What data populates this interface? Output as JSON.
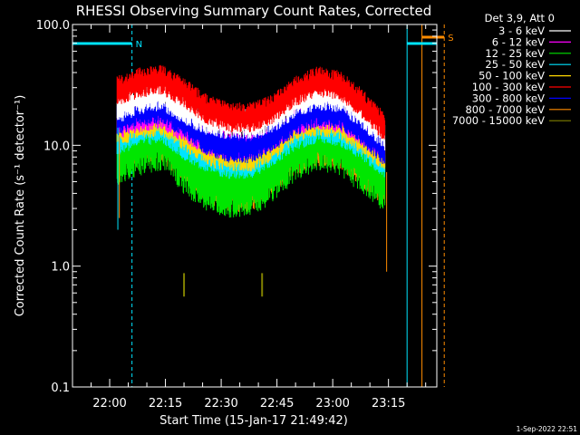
{
  "chart_data": {
    "type": "line",
    "title": "RHESSI Observing Summary Count Rates, Corrected",
    "xlabel": "Start Time (15-Jan-17 21:49:42)",
    "ylabel": "Corrected Count Rate (s⁻¹ detector⁻¹)",
    "y_scale": "log",
    "ylim": [
      0.1,
      100
    ],
    "y_ticks": [
      "0.1",
      "1.0",
      "10.0",
      "100.0"
    ],
    "x_ticks": [
      "22:00",
      "22:15",
      "22:30",
      "22:45",
      "23:00",
      "23:15"
    ],
    "x_range_minutes": [
      -10,
      88
    ],
    "legend_title": "Det 3,9, Att 0",
    "legend_position": "top-right",
    "markers": [
      {
        "label": "N",
        "from_min": -10,
        "to_min": 6,
        "color": "#00e5ff"
      },
      {
        "label": "S",
        "from_min": 84,
        "to_min": 90,
        "color": "#ff8c00"
      }
    ],
    "series": [
      {
        "name": "3 - 6 keV",
        "color": "#ffffff",
        "x": [
          2,
          8,
          14,
          20,
          26,
          32,
          38,
          44,
          50,
          56,
          62,
          68,
          74
        ],
        "y": [
          20,
          24,
          26,
          20,
          16,
          15,
          15,
          17,
          22,
          26,
          25,
          18,
          12
        ]
      },
      {
        "name": "6 - 12 keV",
        "color": "#ff00ff",
        "x": [
          2,
          8,
          14,
          20,
          26,
          32,
          38,
          44,
          50,
          56,
          62,
          68,
          74
        ],
        "y": [
          15,
          17,
          18,
          14,
          11,
          10,
          10,
          12,
          16,
          18,
          17,
          13,
          9
        ]
      },
      {
        "name": "12 - 25 keV",
        "color": "#00e600",
        "x": [
          2,
          8,
          14,
          20,
          26,
          32,
          38,
          44,
          50,
          56,
          62,
          68,
          74
        ],
        "y": [
          8,
          10,
          11,
          7,
          5,
          4.5,
          4.5,
          6,
          9,
          11,
          10,
          7,
          5
        ]
      },
      {
        "name": "25 - 50 keV",
        "color": "#00e5ff",
        "x": [
          2,
          8,
          14,
          20,
          26,
          32,
          38,
          44,
          50,
          56,
          62,
          68,
          74
        ],
        "y": [
          11,
          13,
          14,
          10,
          8,
          7,
          7,
          9,
          12,
          14,
          13,
          10,
          7
        ]
      },
      {
        "name": "50 - 100 keV",
        "color": "#ffd700",
        "x": [
          2,
          8,
          14,
          20,
          26,
          32,
          38,
          44,
          50,
          56,
          62,
          68,
          74
        ],
        "y": [
          13,
          15,
          16,
          12,
          9,
          8,
          8,
          10,
          14,
          16,
          15,
          11,
          8
        ]
      },
      {
        "name": "100 - 300 keV",
        "color": "#ff0000",
        "x": [
          2,
          8,
          14,
          20,
          26,
          32,
          38,
          44,
          50,
          56,
          62,
          68,
          74
        ],
        "y": [
          28,
          33,
          35,
          27,
          20,
          17,
          17,
          20,
          28,
          34,
          31,
          22,
          14
        ]
      },
      {
        "name": "300 - 800 keV",
        "color": "#0000ff",
        "x": [
          2,
          8,
          14,
          20,
          26,
          32,
          38,
          44,
          50,
          56,
          62,
          68,
          74
        ],
        "y": [
          16,
          19,
          20,
          15,
          11,
          9.5,
          9.5,
          11.5,
          16,
          19,
          18,
          13,
          9
        ]
      },
      {
        "name": "800 - 7000 keV",
        "color": "#ff8c00",
        "x": [
          2,
          8,
          14,
          20,
          26,
          32,
          38,
          44,
          50,
          56,
          62,
          68,
          74
        ],
        "y": [
          10,
          12,
          13,
          9,
          6,
          5,
          5,
          7,
          10,
          12,
          11,
          8,
          5.5
        ]
      },
      {
        "name": "7000 - 15000 keV",
        "color": "#808000",
        "x": [
          20,
          41
        ],
        "y": [
          0.7,
          0.7
        ]
      }
    ]
  },
  "footer": {
    "timestamp": "1-Sep-2022 22:51"
  }
}
